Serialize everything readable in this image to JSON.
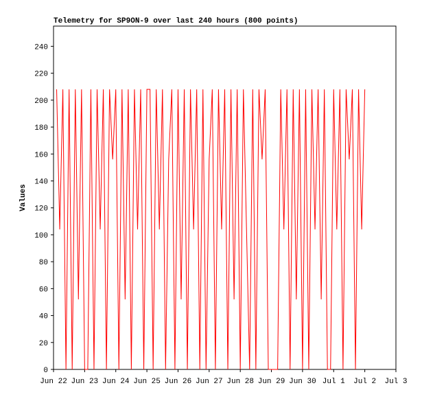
{
  "chart_data": {
    "type": "line",
    "title": "Telemetry for SP9ON-9 over last 240 hours (800 points)",
    "y_label": "Values",
    "x": [
      0.1,
      0.2,
      0.3,
      0.4,
      0.5,
      0.6,
      0.7,
      0.8,
      0.9,
      1.0,
      1.1,
      1.2,
      1.3,
      1.4,
      1.5,
      1.6,
      1.7,
      1.8,
      1.9,
      2.0,
      2.1,
      2.2,
      2.3,
      2.4,
      2.5,
      2.6,
      2.7,
      2.8,
      2.9,
      3.0,
      3.1,
      3.2,
      3.3,
      3.4,
      3.5,
      3.6,
      3.7,
      3.8,
      3.9,
      4.0,
      4.1,
      4.2,
      4.3,
      4.4,
      4.5,
      4.6,
      4.7,
      4.8,
      4.9,
      5.0,
      5.1,
      5.2,
      5.3,
      5.4,
      5.5,
      5.6,
      5.7,
      5.8,
      5.9,
      6.0,
      6.1,
      6.2,
      6.3,
      6.4,
      6.5,
      6.6,
      6.7,
      6.8,
      6.9,
      7.0,
      7.1,
      7.2,
      7.3,
      7.4,
      7.5,
      7.6,
      7.7,
      7.8,
      7.9,
      8.0,
      8.1,
      8.2,
      8.3,
      8.4,
      8.5,
      8.6,
      8.7,
      8.8,
      8.9,
      9.0,
      9.1,
      9.2,
      9.3,
      9.4,
      9.5,
      9.6,
      9.7,
      9.8,
      9.9,
      10.0
    ],
    "series": [
      {
        "name": "Values",
        "color": "#ff0000",
        "values": [
          208,
          104,
          208,
          0,
          208,
          0,
          208,
          52,
          208,
          0,
          0,
          208,
          0,
          208,
          104,
          208,
          0,
          208,
          156,
          208,
          0,
          208,
          52,
          208,
          0,
          208,
          104,
          208,
          0,
          208,
          208,
          0,
          208,
          104,
          208,
          0,
          156,
          208,
          0,
          208,
          52,
          208,
          0,
          208,
          104,
          208,
          0,
          208,
          0,
          156,
          208,
          0,
          208,
          104,
          208,
          0,
          208,
          52,
          208,
          0,
          208,
          104,
          0,
          208,
          0,
          208,
          156,
          208,
          0,
          0,
          0,
          0,
          208,
          104,
          208,
          0,
          208,
          52,
          208,
          0,
          208,
          0,
          208,
          104,
          208,
          52,
          208,
          0,
          0,
          208,
          104,
          208,
          0,
          208,
          156,
          208,
          0,
          208,
          104,
          208
        ]
      }
    ],
    "xlim": [
      0,
      11
    ],
    "xticks": [
      {
        "value": 0,
        "label": "Jun 22"
      },
      {
        "value": 1,
        "label": "Jun 23"
      },
      {
        "value": 2,
        "label": "Jun 24"
      },
      {
        "value": 3,
        "label": "Jun 25"
      },
      {
        "value": 4,
        "label": "Jun 26"
      },
      {
        "value": 5,
        "label": "Jun 27"
      },
      {
        "value": 6,
        "label": "Jun 28"
      },
      {
        "value": 7,
        "label": "Jun 29"
      },
      {
        "value": 8,
        "label": "Jun 30"
      },
      {
        "value": 9,
        "label": "Jul 1"
      },
      {
        "value": 10,
        "label": "Jul 2"
      },
      {
        "value": 11,
        "label": "Jul 3"
      }
    ],
    "ylim": [
      0,
      255
    ],
    "yticks": [
      0,
      20,
      40,
      60,
      80,
      100,
      120,
      140,
      160,
      180,
      200,
      220,
      240
    ]
  }
}
